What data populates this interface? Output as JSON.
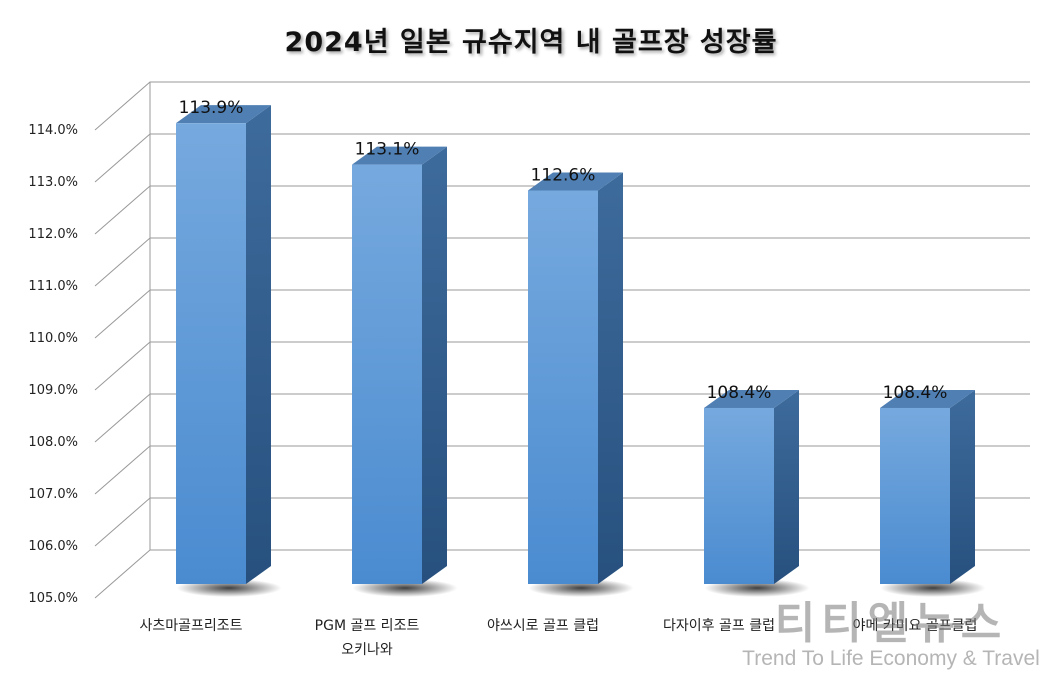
{
  "chart_data": {
    "type": "bar",
    "title": "2024년 일본 규슈지역 내 골프장 성장률",
    "categories": [
      [
        "사츠마골프리조트"
      ],
      [
        "PGM 골프 리조트",
        "오키나와"
      ],
      [
        "야쓰시로 골프 클럽"
      ],
      [
        "다자이후 골프 클럽"
      ],
      [
        "야메 카미요 골프클럽"
      ]
    ],
    "values": [
      113.9,
      113.1,
      112.6,
      108.4,
      108.4
    ],
    "value_labels": [
      "113.9%",
      "113.1%",
      "112.6%",
      "108.4%",
      "108.4%"
    ],
    "ylim": [
      105.0,
      114.0
    ],
    "yticks": [
      "105.0%",
      "106.0%",
      "107.0%",
      "108.0%",
      "109.0%",
      "110.0%",
      "111.0%",
      "112.0%",
      "113.0%",
      "114.0%"
    ],
    "grid": true,
    "style": "3d",
    "colors": {
      "bar_front": "#5b9bd5",
      "bar_side": "#2f5b8a",
      "bar_top": "#4f7fb3"
    }
  },
  "watermark": {
    "main": "티티엘뉴스",
    "sub": "Trend To Life Economy & Travel"
  }
}
